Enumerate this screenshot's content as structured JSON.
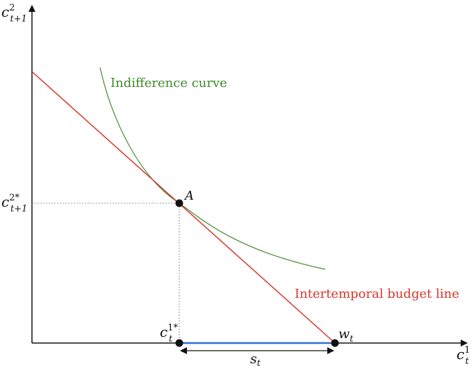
{
  "axes": {
    "y_label": {
      "base": "c",
      "sub": "t+1",
      "sup": "2"
    },
    "x_label": {
      "base": "c",
      "sub": "t",
      "sup": "1"
    }
  },
  "ticks": {
    "y_star": {
      "base": "c",
      "sub": "t+1",
      "sup": "2*"
    },
    "x_star": {
      "base": "c",
      "sub": "t",
      "sup": "1*"
    }
  },
  "points": {
    "A": "A",
    "w": {
      "base": "w",
      "sub": "t"
    }
  },
  "savings": {
    "base": "s",
    "sub": "t"
  },
  "curves": {
    "indifference": {
      "label": "Indifference curve",
      "color": "#3f8a2a"
    },
    "budget": {
      "label": "Intertemporal budget line",
      "color": "#d9342b"
    },
    "savings_segment_color": "#2e6fd8"
  }
}
